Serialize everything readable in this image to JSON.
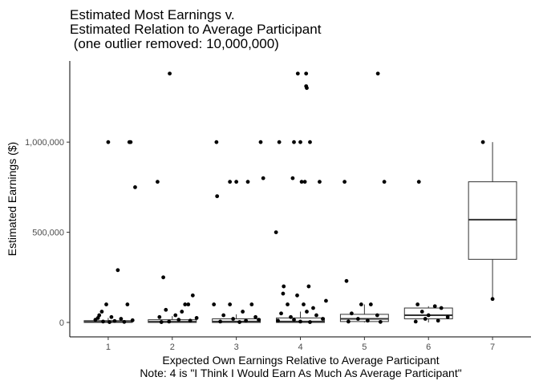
{
  "chart_data": {
    "type": "boxplot",
    "title_lines": [
      "Estimated Most Earnings v.",
      "Estimated Relation to Average Participant",
      " (one outlier removed: 10,000,000)"
    ],
    "xlabel_lines": [
      "Expected Own Earnings Relative to Average Participant",
      "Note: 4 is \"I Think I Would Earn As Much As Average Participant\""
    ],
    "ylabel": "Estimated Earnings ($)",
    "categories": [
      "1",
      "2",
      "3",
      "4",
      "5",
      "6",
      "7"
    ],
    "ylim": [
      -80000,
      1450000
    ],
    "yticks": [
      0,
      500000,
      1000000
    ],
    "ytick_labels": [
      "0",
      "500,000",
      "1,000,000"
    ],
    "grid": false,
    "boxes": [
      {
        "category": "1",
        "q1": 0,
        "median": 3000,
        "q3": 10000,
        "whisker_low": 0,
        "whisker_high": 25000
      },
      {
        "category": "2",
        "q1": 0,
        "median": 4000,
        "q3": 15000,
        "whisker_low": 0,
        "whisker_high": 35000
      },
      {
        "category": "3",
        "q1": 0,
        "median": 5000,
        "q3": 20000,
        "whisker_low": 0,
        "whisker_high": 45000
      },
      {
        "category": "4",
        "q1": 0,
        "median": 5000,
        "q3": 25000,
        "whisker_low": 0,
        "whisker_high": 60000
      },
      {
        "category": "5",
        "q1": 5000,
        "median": 20000,
        "q3": 45000,
        "whisker_low": 0,
        "whisker_high": 100000
      },
      {
        "category": "6",
        "q1": 20000,
        "median": 40000,
        "q3": 80000,
        "whisker_low": 0,
        "whisker_high": 90000
      },
      {
        "category": "7",
        "q1": 350000,
        "median": 570000,
        "q3": 780000,
        "whisker_low": 130000,
        "whisker_high": 1000000
      }
    ],
    "points": [
      {
        "x": 1,
        "y": 1000000
      },
      {
        "x": 1.33,
        "y": 1000000
      },
      {
        "x": 1.35,
        "y": 1000000
      },
      {
        "x": 1.42,
        "y": 750000
      },
      {
        "x": 1.15,
        "y": 290000
      },
      {
        "x": 1.3,
        "y": 100000
      },
      {
        "x": 0.97,
        "y": 100000
      },
      {
        "x": 0.86,
        "y": 40000
      },
      {
        "x": 0.9,
        "y": 60000
      },
      {
        "x": 1.05,
        "y": 30000
      },
      {
        "x": 1.2,
        "y": 20000
      },
      {
        "x": 0.8,
        "y": 15000
      },
      {
        "x": 1.1,
        "y": 8000
      },
      {
        "x": 0.92,
        "y": 5000
      },
      {
        "x": 1.25,
        "y": 3000
      },
      {
        "x": 1.38,
        "y": 12000
      },
      {
        "x": 1.02,
        "y": 2000
      },
      {
        "x": 0.84,
        "y": 25000
      },
      {
        "x": 1.96,
        "y": 1380000
      },
      {
        "x": 1.77,
        "y": 780000
      },
      {
        "x": 1.86,
        "y": 250000
      },
      {
        "x": 2.2,
        "y": 100000
      },
      {
        "x": 2.25,
        "y": 100000
      },
      {
        "x": 2.32,
        "y": 150000
      },
      {
        "x": 2.15,
        "y": 60000
      },
      {
        "x": 1.9,
        "y": 70000
      },
      {
        "x": 2.05,
        "y": 40000
      },
      {
        "x": 1.8,
        "y": 30000
      },
      {
        "x": 2.38,
        "y": 25000
      },
      {
        "x": 2.1,
        "y": 15000
      },
      {
        "x": 1.95,
        "y": 5000
      },
      {
        "x": 2.28,
        "y": 10000
      },
      {
        "x": 1.83,
        "y": 2000
      },
      {
        "x": 2.69,
        "y": 1000000
      },
      {
        "x": 3.38,
        "y": 1000000
      },
      {
        "x": 2.9,
        "y": 780000
      },
      {
        "x": 3.0,
        "y": 780000
      },
      {
        "x": 3.18,
        "y": 780000
      },
      {
        "x": 3.42,
        "y": 800000
      },
      {
        "x": 2.7,
        "y": 700000
      },
      {
        "x": 3.24,
        "y": 100000
      },
      {
        "x": 2.9,
        "y": 100000
      },
      {
        "x": 2.65,
        "y": 100000
      },
      {
        "x": 3.1,
        "y": 60000
      },
      {
        "x": 2.8,
        "y": 40000
      },
      {
        "x": 3.3,
        "y": 30000
      },
      {
        "x": 2.95,
        "y": 20000
      },
      {
        "x": 3.15,
        "y": 10000
      },
      {
        "x": 2.75,
        "y": 5000
      },
      {
        "x": 3.05,
        "y": 2000
      },
      {
        "x": 3.35,
        "y": 15000
      },
      {
        "x": 3.96,
        "y": 1380000
      },
      {
        "x": 4.09,
        "y": 1380000
      },
      {
        "x": 4.09,
        "y": 1310000
      },
      {
        "x": 4.1,
        "y": 1300000
      },
      {
        "x": 3.67,
        "y": 1000000
      },
      {
        "x": 3.9,
        "y": 1000000
      },
      {
        "x": 4.0,
        "y": 1000000
      },
      {
        "x": 4.15,
        "y": 1000000
      },
      {
        "x": 3.88,
        "y": 800000
      },
      {
        "x": 4.02,
        "y": 780000
      },
      {
        "x": 4.07,
        "y": 780000
      },
      {
        "x": 4.3,
        "y": 780000
      },
      {
        "x": 3.62,
        "y": 500000
      },
      {
        "x": 3.74,
        "y": 200000
      },
      {
        "x": 3.73,
        "y": 160000
      },
      {
        "x": 4.13,
        "y": 200000
      },
      {
        "x": 3.95,
        "y": 150000
      },
      {
        "x": 4.05,
        "y": 100000
      },
      {
        "x": 3.8,
        "y": 100000
      },
      {
        "x": 4.2,
        "y": 80000
      },
      {
        "x": 4.4,
        "y": 120000
      },
      {
        "x": 4.1,
        "y": 60000
      },
      {
        "x": 3.7,
        "y": 50000
      },
      {
        "x": 4.25,
        "y": 40000
      },
      {
        "x": 3.85,
        "y": 30000
      },
      {
        "x": 4.35,
        "y": 20000
      },
      {
        "x": 3.65,
        "y": 10000
      },
      {
        "x": 4.0,
        "y": 5000
      },
      {
        "x": 4.15,
        "y": 2000
      },
      {
        "x": 3.9,
        "y": 15000
      },
      {
        "x": 5.21,
        "y": 1380000
      },
      {
        "x": 4.69,
        "y": 780000
      },
      {
        "x": 5.31,
        "y": 780000
      },
      {
        "x": 4.72,
        "y": 230000
      },
      {
        "x": 4.95,
        "y": 100000
      },
      {
        "x": 5.1,
        "y": 100000
      },
      {
        "x": 4.8,
        "y": 50000
      },
      {
        "x": 5.2,
        "y": 40000
      },
      {
        "x": 4.9,
        "y": 20000
      },
      {
        "x": 5.05,
        "y": 10000
      },
      {
        "x": 4.75,
        "y": 5000
      },
      {
        "x": 5.25,
        "y": 3000
      },
      {
        "x": 5.85,
        "y": 780000
      },
      {
        "x": 5.83,
        "y": 100000
      },
      {
        "x": 6.1,
        "y": 90000
      },
      {
        "x": 5.9,
        "y": 60000
      },
      {
        "x": 6.2,
        "y": 80000
      },
      {
        "x": 6.0,
        "y": 40000
      },
      {
        "x": 5.95,
        "y": 20000
      },
      {
        "x": 6.15,
        "y": 10000
      },
      {
        "x": 6.3,
        "y": 30000
      },
      {
        "x": 5.8,
        "y": 5000
      },
      {
        "x": 6.85,
        "y": 1000000
      },
      {
        "x": 7.0,
        "y": 130000
      }
    ]
  }
}
